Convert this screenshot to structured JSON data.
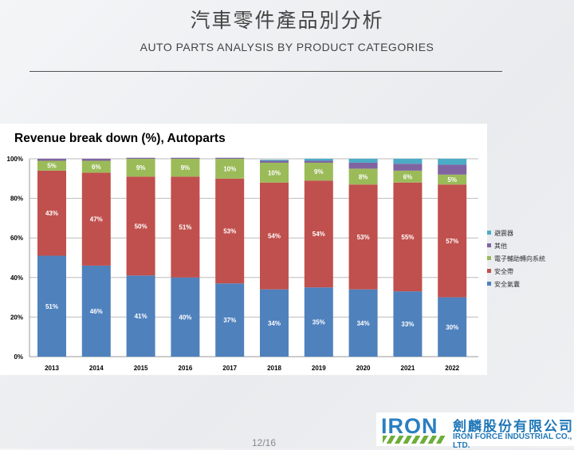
{
  "slide": {
    "title": "汽車零件產品別分析",
    "subtitle": "AUTO PARTS ANALYSIS BY PRODUCT CATEGORIES",
    "page_number": "12/16"
  },
  "logo": {
    "brand": "IRON",
    "company_cn": "劍麟股份有限公司",
    "company_en": "IRON FORCE INDUSTRIAL CO., LTD."
  },
  "chart_data": {
    "type": "bar",
    "stacked": true,
    "title": "Revenue break down (%), Autoparts",
    "xlabel": "",
    "ylabel": "",
    "ylim": [
      0,
      100
    ],
    "yticks": [
      "0%",
      "20%",
      "40%",
      "60%",
      "80%",
      "100%"
    ],
    "grid": true,
    "legend_position": "right",
    "categories": [
      "2013",
      "2014",
      "2015",
      "2016",
      "2017",
      "2018",
      "2019",
      "2020",
      "2021",
      "2022"
    ],
    "series": [
      {
        "name": "安全氣囊",
        "color": "#4f81bd",
        "values": [
          51,
          46,
          41,
          40,
          37,
          34,
          35,
          34,
          33,
          30
        ],
        "labels": [
          "51%",
          "46%",
          "41%",
          "40%",
          "37%",
          "34%",
          "35%",
          "34%",
          "33%",
          "30%"
        ]
      },
      {
        "name": "安全帶",
        "color": "#c0504d",
        "values": [
          43,
          47,
          50,
          51,
          53,
          54,
          54,
          53,
          55,
          57
        ],
        "labels": [
          "43%",
          "47%",
          "50%",
          "51%",
          "53%",
          "54%",
          "54%",
          "53%",
          "55%",
          "57%"
        ]
      },
      {
        "name": "電子輔助轉向系統",
        "color": "#9bbb59",
        "values": [
          5,
          6,
          9,
          9,
          10,
          10,
          9,
          8,
          6,
          5
        ],
        "labels": [
          "5%",
          "6%",
          "9%",
          "9%",
          "10%",
          "10%",
          "9%",
          "8%",
          "6%",
          "5%"
        ]
      },
      {
        "name": "其他",
        "color": "#8064a2",
        "values": [
          1,
          1,
          0.5,
          0.5,
          0.5,
          1,
          1,
          3,
          3.5,
          5
        ]
      },
      {
        "name": "避震器",
        "color": "#4bacc6",
        "values": [
          0,
          0,
          0,
          0,
          0,
          0.5,
          1,
          2,
          2.5,
          3
        ]
      }
    ]
  }
}
